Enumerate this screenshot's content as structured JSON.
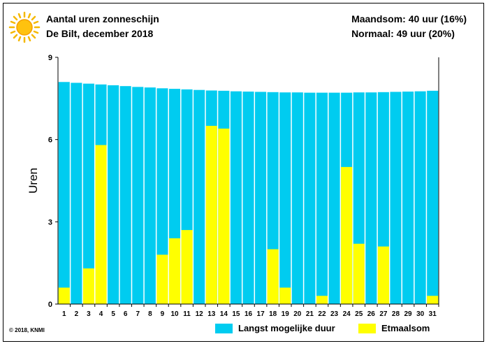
{
  "header": {
    "title": "Aantal uren zonneschijn",
    "subtitle": "De Bilt, december 2018",
    "month_sum": "Maandsom: 40 uur (16%)",
    "normal": "Normaal: 49 uur (20%)"
  },
  "footer": {
    "copyright": "© 2018, KNMI"
  },
  "icons": {
    "sun": "sun-icon"
  },
  "colors": {
    "max_duration": "#00ccf0",
    "daily_sum": "#ffff00",
    "background": "#ffffff",
    "grid": "#000000"
  },
  "chart_data": {
    "type": "bar",
    "ylabel": "Uren",
    "ylim": [
      0,
      9
    ],
    "yticks": [
      0,
      3,
      6,
      9
    ],
    "grid": false,
    "legend_placement": "bottom",
    "categories": [
      "1",
      "2",
      "3",
      "4",
      "5",
      "6",
      "7",
      "8",
      "9",
      "10",
      "11",
      "12",
      "13",
      "14",
      "15",
      "16",
      "17",
      "18",
      "19",
      "20",
      "21",
      "22",
      "23",
      "24",
      "25",
      "26",
      "27",
      "28",
      "29",
      "30",
      "31"
    ],
    "series": [
      {
        "name": "Langst mogelijke duur",
        "color": "#00ccf0",
        "values": [
          8.1,
          8.07,
          8.04,
          8.01,
          7.98,
          7.95,
          7.92,
          7.9,
          7.87,
          7.85,
          7.83,
          7.81,
          7.79,
          7.78,
          7.76,
          7.75,
          7.74,
          7.73,
          7.72,
          7.72,
          7.71,
          7.71,
          7.71,
          7.71,
          7.72,
          7.72,
          7.73,
          7.74,
          7.75,
          7.76,
          7.78
        ]
      },
      {
        "name": "Etmaalsom",
        "color": "#ffff00",
        "values": [
          0.6,
          0.0,
          1.3,
          5.8,
          0.0,
          0.0,
          0.0,
          0.0,
          1.8,
          2.4,
          2.7,
          0.0,
          6.5,
          6.4,
          0.0,
          0.0,
          0.0,
          2.0,
          0.6,
          0.0,
          0.0,
          0.3,
          0.0,
          5.0,
          2.2,
          0.0,
          2.1,
          0.0,
          0.0,
          0.0,
          0.3
        ]
      }
    ]
  }
}
